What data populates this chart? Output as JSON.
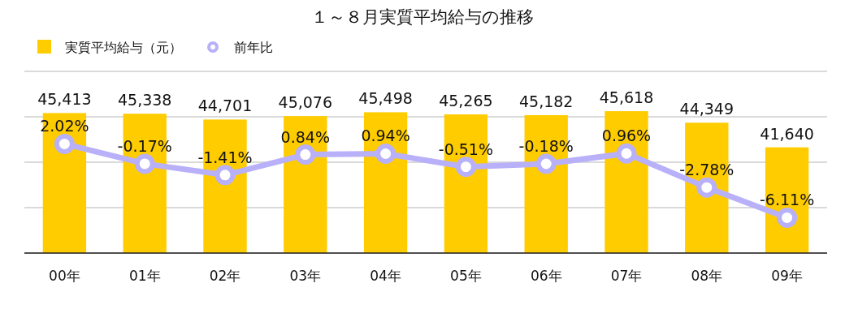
{
  "chart_data": {
    "type": "bar",
    "title": "１～８月実質平均給与の推移",
    "categories": [
      "00年",
      "01年",
      "02年",
      "03年",
      "04年",
      "05年",
      "06年",
      "07年",
      "08年",
      "09年"
    ],
    "series": [
      {
        "name": "実質平均給与（元）",
        "color": "#ffcc00",
        "values": [
          45413,
          45338,
          44701,
          45076,
          45498,
          45265,
          45182,
          45618,
          44349,
          41640
        ],
        "value_labels": [
          "45,413",
          "45,338",
          "44,701",
          "45,076",
          "45,498",
          "45,265",
          "45,182",
          "45,618",
          "44,349",
          "41,640"
        ]
      },
      {
        "name": "前年比",
        "type": "line",
        "axis": "y2",
        "color": "#b8b0f8",
        "marker": "circle",
        "values": [
          2.02,
          -0.17,
          -1.41,
          0.84,
          0.94,
          -0.51,
          -0.18,
          0.96,
          -2.78,
          -6.11
        ],
        "value_labels": [
          "2.02%",
          "-0.17%",
          "-1.41%",
          "0.84%",
          "0.94%",
          "-0.51%",
          "-0.18%",
          "0.96%",
          "-2.78%",
          "-6.11%"
        ]
      }
    ],
    "ylim": [
      30000,
      50000
    ],
    "yticks": [
      {
        "value": 30000,
        "label": null
      },
      {
        "value": 35000,
        "label": null
      },
      {
        "value": 40000,
        "label": null
      },
      {
        "value": 45000,
        "label": null
      },
      {
        "value": 50000,
        "label": null
      }
    ],
    "y2lim": [
      -10,
      10
    ],
    "grid": "y",
    "legend": "top left",
    "tick_labels": "x"
  }
}
